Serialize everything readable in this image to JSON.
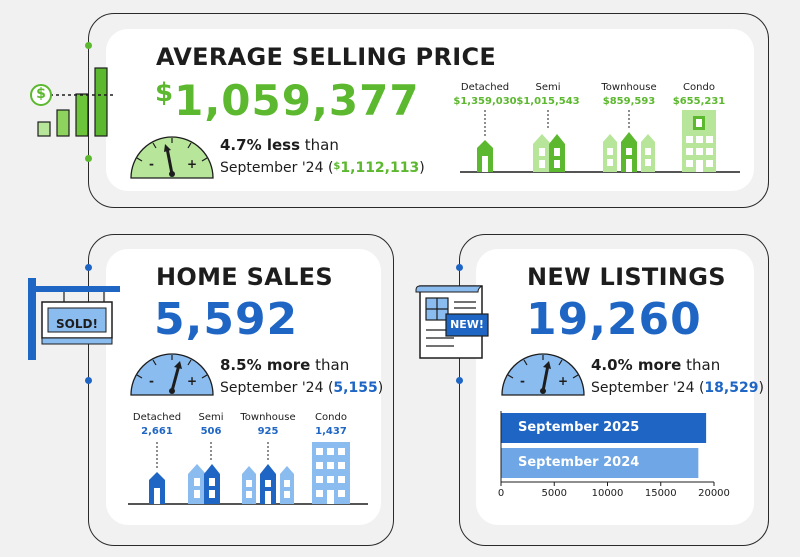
{
  "colors": {
    "green": "#5cb82f",
    "light_green": "#b7e59a",
    "blue": "#1f66c4",
    "light_blue": "#8bbcf0",
    "dark": "#1d1d1d"
  },
  "avg_price": {
    "title": "AVERAGE SELLING PRICE",
    "currency": "$",
    "value": "1,059,377",
    "change_strong": "4.7% less",
    "change_rest": " than",
    "prev_label": "September '24 (",
    "prev_currency": "$",
    "prev_value": "1,112,113",
    "prev_close": ")",
    "gauge_minus": "-",
    "gauge_plus": "+",
    "icon_symbol": "$",
    "types": [
      {
        "label": "Detached",
        "value": "$1,359,030"
      },
      {
        "label": "Semi",
        "value": "$1,015,543"
      },
      {
        "label": "Townhouse",
        "value": "$859,593"
      },
      {
        "label": "Condo",
        "value": "$655,231"
      }
    ]
  },
  "home_sales": {
    "title": "HOME SALES",
    "value": "5,592",
    "sign_text": "SOLD!",
    "change_strong": "8.5% more",
    "change_rest": " than",
    "prev_label": "September '24 (",
    "prev_value": "5,155",
    "prev_close": ")",
    "gauge_minus": "-",
    "gauge_plus": "+",
    "types": [
      {
        "label": "Detached",
        "value": "2,661"
      },
      {
        "label": "Semi",
        "value": "506"
      },
      {
        "label": "Townhouse",
        "value": "925"
      },
      {
        "label": "Condo",
        "value": "1,437"
      }
    ]
  },
  "new_listings": {
    "title": "NEW LISTINGS",
    "value": "19,260",
    "icon_badge": "NEW!",
    "change_strong": "4.0% more",
    "change_rest": " than",
    "prev_label": "September '24 (",
    "prev_value": "18,529",
    "prev_close": ")",
    "gauge_minus": "-",
    "gauge_plus": "+"
  },
  "chart_data": {
    "type": "bar",
    "orientation": "horizontal",
    "categories": [
      "September 2025",
      "September 2024"
    ],
    "values": [
      19260,
      18529
    ],
    "xlim": [
      0,
      20000
    ],
    "xticks": [
      "0",
      "5000",
      "10000",
      "15000",
      "20000"
    ],
    "grid": false,
    "bar_colors": [
      "#1f66c4",
      "#6fa6e6"
    ]
  }
}
